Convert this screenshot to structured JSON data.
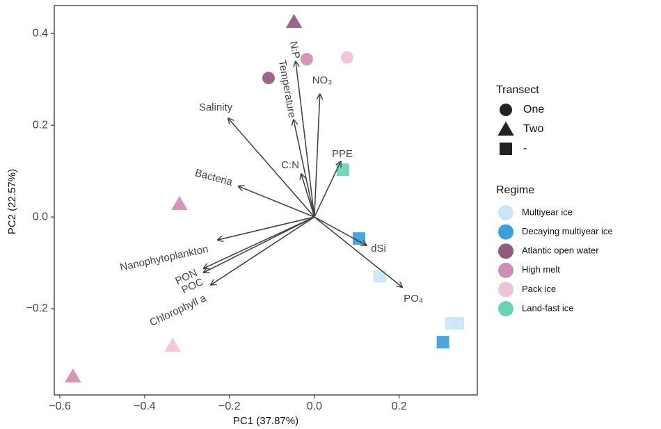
{
  "chart_data": {
    "type": "scatter",
    "x_label": "PC1 (37.87%)",
    "y_label": "PC2 (22.57%)",
    "xlim": [
      -0.613,
      0.384
    ],
    "ylim": [
      -0.388,
      0.461
    ],
    "xticks": [
      {
        "value": -0.6,
        "label": "−0.6"
      },
      {
        "value": -0.4,
        "label": "−0.4"
      },
      {
        "value": -0.2,
        "label": "−0.2"
      },
      {
        "value": 0,
        "label": "0.0"
      },
      0.2
    ],
    "yticks": [
      {
        "value": -0.2,
        "label": "−0.2"
      },
      {
        "value": 0,
        "label": "0.0"
      },
      0.2,
      0.4
    ],
    "grid": false,
    "shape_legend": {
      "title": "Transect",
      "entries": [
        {
          "label": "One",
          "shape": "circle"
        },
        {
          "label": "Two",
          "shape": "triangle"
        },
        {
          "label": "-",
          "shape": "square"
        }
      ]
    },
    "color_legend_title": "Regime",
    "series": [
      {
        "name": "Multiyear ice",
        "color": "#cbe5f8",
        "x": [
          0.154,
          0.323,
          0.338
        ],
        "values": [
          -0.129,
          -0.232,
          -0.232
        ],
        "shapes": [
          "square",
          "square",
          "square"
        ]
      },
      {
        "name": "Decaying multiyear ice",
        "color": "#3c9edb",
        "x": [
          0.105,
          0.303
        ],
        "values": [
          -0.047,
          -0.273
        ],
        "shapes": [
          "square",
          "square"
        ]
      },
      {
        "name": "Atlantic open water",
        "color": "#925a7e",
        "x": [
          -0.048,
          -0.108
        ],
        "values": [
          0.426,
          0.303
        ],
        "shapes": [
          "triangle",
          "circle"
        ]
      },
      {
        "name": "High melt",
        "color": "#d18db3",
        "x": [
          -0.018,
          -0.318,
          -0.569
        ],
        "values": [
          0.344,
          0.029,
          -0.347
        ],
        "shapes": [
          "circle",
          "triangle",
          "triangle"
        ]
      },
      {
        "name": "Pack ice",
        "color": "#efc2d9",
        "x": [
          0.077,
          -0.334
        ],
        "values": [
          0.348,
          -0.28
        ],
        "shapes": [
          "circle",
          "triangle"
        ]
      },
      {
        "name": "Land-fast ice",
        "color": "#6bd2b4",
        "x": [
          0.067
        ],
        "values": [
          0.103
        ],
        "shapes": [
          "square"
        ]
      }
    ],
    "loadings": {
      "names": [
        "N:P",
        "Temperature",
        "NO₃",
        "Salinity",
        "C:N",
        "PPE",
        "Bacteria",
        "Nanophytoplankton",
        "PON",
        "POC",
        "Chlorophyll a",
        "dSi",
        "PO₄"
      ],
      "x": [
        -0.044,
        -0.049,
        0.013,
        -0.203,
        -0.031,
        0.062,
        -0.179,
        -0.228,
        -0.261,
        -0.261,
        -0.244,
        0.123,
        0.207
      ],
      "y": [
        0.339,
        0.212,
        0.268,
        0.215,
        0.094,
        0.121,
        0.067,
        -0.05,
        -0.112,
        -0.121,
        -0.148,
        -0.062,
        -0.153
      ]
    }
  }
}
